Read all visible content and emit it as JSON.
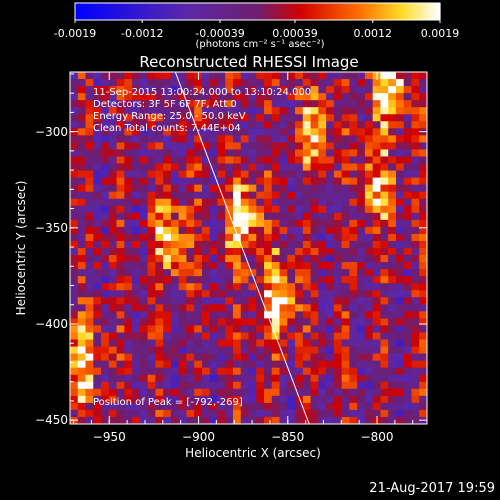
{
  "colorbar": {
    "tick_labels": [
      "-0.0019",
      "-0.0012",
      "-0.00039",
      "0.00039",
      "0.0012",
      "0.0019"
    ],
    "units": "(photons cm⁻² s⁻¹ asec⁻²)",
    "range": [
      -0.0019,
      0.0019
    ]
  },
  "plot": {
    "title": "Reconstructed RHESSI Image",
    "info_lines": [
      "11-Sep-2015 13:00:24.000 to 13:10:24.000",
      "Detectors: 3F 5F 6F 7F, Att 0",
      "Energy Range: 25.0 - 50.0 keV",
      "Clean     Total counts: 7.44E+04"
    ],
    "peak_text": "Position of Peak = [-792,-269]",
    "timestamp": "21-Aug-2017 19:59"
  },
  "chart_data": {
    "type": "heatmap",
    "title": "Reconstructed RHESSI Image",
    "xlabel": "Heliocentric X (arcsec)",
    "ylabel": "Heliocentric Y (arcsec)",
    "xlim": [
      -972,
      -772
    ],
    "ylim": [
      -452,
      -269
    ],
    "x_ticks": [
      -950,
      -900,
      -850,
      -800
    ],
    "y_ticks": [
      -450,
      -400,
      -350,
      -300
    ],
    "colorscale": "red-temperature",
    "limb_line": [
      [
        -913,
        -269
      ],
      [
        -838,
        -452
      ]
    ],
    "peak_position": [
      -792,
      -269
    ],
    "bright_regions": [
      {
        "x": -875,
        "y": -345,
        "value": 0.0017
      },
      {
        "x": -855,
        "y": -385,
        "value": 0.0016
      },
      {
        "x": -915,
        "y": -355,
        "value": 0.0014
      },
      {
        "x": -965,
        "y": -420,
        "value": 0.0015
      },
      {
        "x": -793,
        "y": -275,
        "value": 0.0019
      },
      {
        "x": -800,
        "y": -330,
        "value": 0.0013
      },
      {
        "x": -835,
        "y": -300,
        "value": 0.0012
      }
    ]
  }
}
